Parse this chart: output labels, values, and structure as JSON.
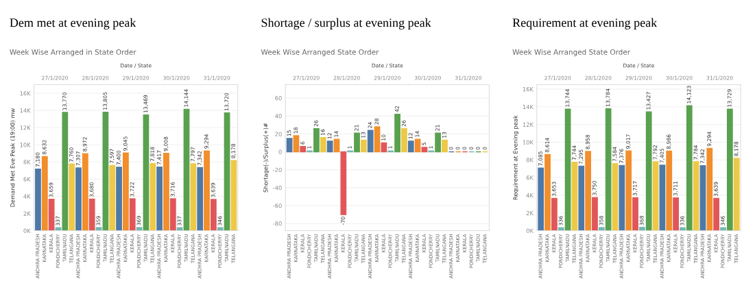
{
  "chart_data": [
    {
      "type": "bar",
      "title": "Dem met at evening peak",
      "subtitle": "Week Wise Arranged in State Order",
      "ylabel": "Demand Met Eve Peak (19:00) mw",
      "annotations": [
        "Date / State",
        "27/1/2020",
        "28/1/2020",
        "29/1/2020",
        "30/1/2020",
        "31/1/2020"
      ],
      "categories": [
        "ANDHRA PRADESH",
        "KARNATAKA",
        "KERALA",
        "PONDICHERRY",
        "TAMILNADU",
        "TELANGANA",
        "ANDHRA PRADESH",
        "KARNATAKA",
        "KERALA",
        "PONDICHERRY",
        "TAMILNADU",
        "TELANGANA",
        "ANDHRA PRADESH",
        "KARNATAKA",
        "KERALA",
        "PONDICHERRY",
        "TAMILNADU",
        "TELANGANA",
        "ANDHRA PRADESH",
        "KARNATAKA",
        "KERALA",
        "PONDICHERRY",
        "TAMILNADU",
        "TELANGANA",
        "ANDHRA PRADESH",
        "KARNATAKA",
        "KERALA",
        "PONDICHERRY",
        "TAMILNADU",
        "TELANGANA"
      ],
      "values": [
        7180,
        8632,
        3659,
        337,
        13770,
        7760,
        7307,
        8972,
        3680,
        359,
        13805,
        7597,
        7400,
        9045,
        3722,
        369,
        13469,
        7818,
        7417,
        9008,
        3716,
        337,
        14144,
        7797,
        7342,
        9294,
        3639,
        346,
        13720,
        8178
      ],
      "value_labels": [
        "7,180",
        "8,632",
        "3,659",
        "337",
        "13,770",
        "7,760",
        "7,307",
        "8,972",
        "3,680",
        "359",
        "13,805",
        "7,597",
        "7,400",
        "9,045",
        "3,722",
        "369",
        "13,469",
        "7,818",
        "7,417",
        "9,008",
        "3,716",
        "337",
        "14,144",
        "7,797",
        "7,342",
        "9,294",
        "3,639",
        "346",
        "13,720",
        "8,178"
      ],
      "colors": [
        "#4e79a7",
        "#f28e2b",
        "#e15759",
        "#76b7b2",
        "#59a14f",
        "#edc948",
        "#4e79a7",
        "#f28e2b",
        "#e15759",
        "#76b7b2",
        "#59a14f",
        "#edc948",
        "#4e79a7",
        "#f28e2b",
        "#e15759",
        "#76b7b2",
        "#59a14f",
        "#edc948",
        "#4e79a7",
        "#f28e2b",
        "#e15759",
        "#76b7b2",
        "#59a14f",
        "#edc948",
        "#4e79a7",
        "#f28e2b",
        "#e15759",
        "#76b7b2",
        "#59a14f",
        "#edc948"
      ],
      "ylim": [
        0,
        17000
      ],
      "yticks": [
        {
          "value": 0,
          "label": "0K"
        },
        {
          "value": 2000,
          "label": "2K"
        },
        {
          "value": 4000,
          "label": "4K"
        },
        {
          "value": 6000,
          "label": "6K"
        },
        {
          "value": 8000,
          "label": "8K"
        },
        {
          "value": 10000,
          "label": "10K"
        },
        {
          "value": 12000,
          "label": "12K"
        },
        {
          "value": 14000,
          "label": "14K"
        },
        {
          "value": 16000,
          "label": "16K"
        }
      ],
      "grid": "y",
      "legend": false
    },
    {
      "type": "bar",
      "title": "Shortage / surplus at evening peak",
      "subtitle": "Week Wise Arranged State Order",
      "ylabel": "Shortage(-)/Surplus(+)#",
      "annotations": [
        "Date / State",
        "27/1/2020",
        "28/1/2020",
        "29/1/2020",
        "30/1/2020",
        "31/1/2020"
      ],
      "categories": [
        "ANDHRA PRADESH",
        "KARNATAKA",
        "KERALA",
        "PONDICHERRY",
        "TAMILNADU",
        "TELANGANA",
        "ANDHRA PRADESH",
        "KARNATAKA",
        "KERALA",
        "PONDICHERRY",
        "TAMILNADU",
        "TELANGANA",
        "ANDHRA PRADESH",
        "KARNATAKA",
        "KERALA",
        "PONDICHERRY",
        "TAMILNADU",
        "TELANGANA",
        "ANDHRA PRADESH",
        "KARNATAKA",
        "KERALA",
        "PONDICHERRY",
        "TAMILNADU",
        "TELANGANA",
        "ANDHRA PRADESH",
        "KARNATAKA",
        "KERALA",
        "PONDICHERRY",
        "TAMILNADU",
        "TELANGANA"
      ],
      "values": [
        15,
        18,
        6,
        1,
        26,
        16,
        12,
        14,
        -70,
        1,
        21,
        13,
        24,
        28,
        10,
        1,
        42,
        26,
        12,
        14,
        5,
        1,
        21,
        13,
        0,
        0,
        0,
        0,
        0,
        0
      ],
      "colors": [
        "#4e79a7",
        "#f28e2b",
        "#e15759",
        "#76b7b2",
        "#59a14f",
        "#edc948",
        "#4e79a7",
        "#f28e2b",
        "#e15759",
        "#76b7b2",
        "#59a14f",
        "#edc948",
        "#4e79a7",
        "#f28e2b",
        "#e15759",
        "#76b7b2",
        "#59a14f",
        "#edc948",
        "#4e79a7",
        "#f28e2b",
        "#e15759",
        "#76b7b2",
        "#59a14f",
        "#edc948",
        "#4e79a7",
        "#f28e2b",
        "#e15759",
        "#76b7b2",
        "#59a14f",
        "#edc948"
      ],
      "data_labels": true,
      "ylim": [
        -88,
        75
      ],
      "yticks": [
        -80,
        -60,
        -40,
        -20,
        0,
        20,
        40,
        60
      ],
      "grid": "y",
      "legend": false
    },
    {
      "type": "bar",
      "title": "Requirement at evening peak",
      "subtitle": "Week Wise Arranged State Order",
      "ylabel": "Requirement at Evening peak",
      "annotations": [
        "Date / State",
        "27/1/2020",
        "28/1/2020",
        "29/1/2020",
        "30/1/2020",
        "31/1/2020"
      ],
      "categories": [
        "ANDHRA PRADESH",
        "KARNATAKA",
        "KERALA",
        "PONDICHERRY",
        "TAMILNADU",
        "TELANGANA",
        "ANDHRA PRADESH",
        "KARNATAKA",
        "KERALA",
        "PONDICHERRY",
        "TAMILNADU",
        "TELANGANA",
        "ANDHRA PRADESH",
        "KARNATAKA",
        "KERALA",
        "PONDICHERRY",
        "TAMILNADU",
        "TELANGANA",
        "ANDHRA PRADESH",
        "KARNATAKA",
        "KERALA",
        "PONDICHERRY",
        "TAMILNADU",
        "TELANGANA",
        "ANDHRA PRADESH",
        "KARNATAKA",
        "KERALA",
        "PONDICHERRY",
        "TAMILNADU",
        "TELANGANA"
      ],
      "values": [
        7085,
        8614,
        3653,
        336,
        13744,
        7744,
        7295,
        8958,
        3750,
        358,
        13784,
        7584,
        7376,
        9017,
        3717,
        368,
        13427,
        7792,
        7405,
        8986,
        3711,
        336,
        14123,
        7784,
        7342,
        9294,
        3639,
        346,
        13729,
        8178
      ],
      "value_labels": [
        "7,085",
        "8,614",
        "3,653",
        "336",
        "13,744",
        "7,744",
        "7,295",
        "8,958",
        "3,750",
        "358",
        "13,784",
        "7,584",
        "7,376",
        "9,017",
        "3,717",
        "368",
        "13,427",
        "7,792",
        "7,405",
        "8,986",
        "3,711",
        "336",
        "14,123",
        "7,784",
        "7,342",
        "9,294",
        "3,639",
        "346",
        "13,729",
        "8,178"
      ],
      "colors": [
        "#4e79a7",
        "#f28e2b",
        "#e15759",
        "#76b7b2",
        "#59a14f",
        "#edc948",
        "#4e79a7",
        "#f28e2b",
        "#e15759",
        "#76b7b2",
        "#59a14f",
        "#edc948",
        "#4e79a7",
        "#f28e2b",
        "#e15759",
        "#76b7b2",
        "#59a14f",
        "#edc948",
        "#4e79a7",
        "#f28e2b",
        "#e15759",
        "#76b7b2",
        "#59a14f",
        "#edc948",
        "#4e79a7",
        "#f28e2b",
        "#e15759",
        "#76b7b2",
        "#59a14f",
        "#edc948"
      ],
      "ylim": [
        0,
        16500
      ],
      "yticks": [
        {
          "value": 0,
          "label": "0K"
        },
        {
          "value": 2000,
          "label": "2K"
        },
        {
          "value": 4000,
          "label": "4K"
        },
        {
          "value": 6000,
          "label": "6K"
        },
        {
          "value": 8000,
          "label": "8K"
        },
        {
          "value": 10000,
          "label": "10K"
        },
        {
          "value": 12000,
          "label": "12K"
        },
        {
          "value": 14000,
          "label": "14K"
        },
        {
          "value": 16000,
          "label": "16K"
        }
      ],
      "grid": "y",
      "legend": false
    }
  ]
}
